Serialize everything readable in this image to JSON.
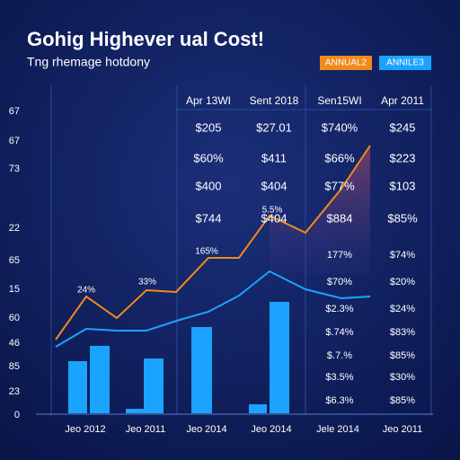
{
  "header": {
    "title": "Gohig Highever ual Cost!",
    "subtitle": "Tng rhemage hotdony"
  },
  "legend": [
    "ANNUAL2",
    "ANNILE3"
  ],
  "y_labels": [
    "67",
    "67",
    "73",
    "22",
    "65",
    "15",
    "60",
    "46",
    "85",
    "23",
    "0"
  ],
  "columns": [
    "Apr 13WI",
    "Sent 2018",
    "Sen15WI",
    "Apr 2011"
  ],
  "table": {
    "rows": [
      [
        "$205",
        "$27.01",
        "$740%",
        "$245"
      ],
      [
        "$60%",
        "$411",
        "$66%",
        "$223"
      ],
      [
        "$400",
        "$404",
        "$77%",
        "$103"
      ],
      [
        "$744",
        "$404",
        "$884",
        "$85%"
      ]
    ],
    "extra_rows": [
      [
        "177%",
        "$74%"
      ],
      [
        "$70%",
        "$20%"
      ],
      [
        "$2.3%",
        "$24%"
      ],
      [
        "$.74%",
        "$83%"
      ],
      [
        "$.7.%",
        "$85%"
      ],
      [
        "$3.5%",
        "$30%"
      ],
      [
        "$6.3%",
        "$85%"
      ]
    ]
  },
  "annotations": [
    "5.5%",
    "165%",
    "24%",
    "33%"
  ],
  "x_labels": [
    "Jeo 2012",
    "Jeo 2011",
    "Jeo 2014",
    "Jeo 2014",
    "Jele 2014",
    "Jeo 2011"
  ]
}
